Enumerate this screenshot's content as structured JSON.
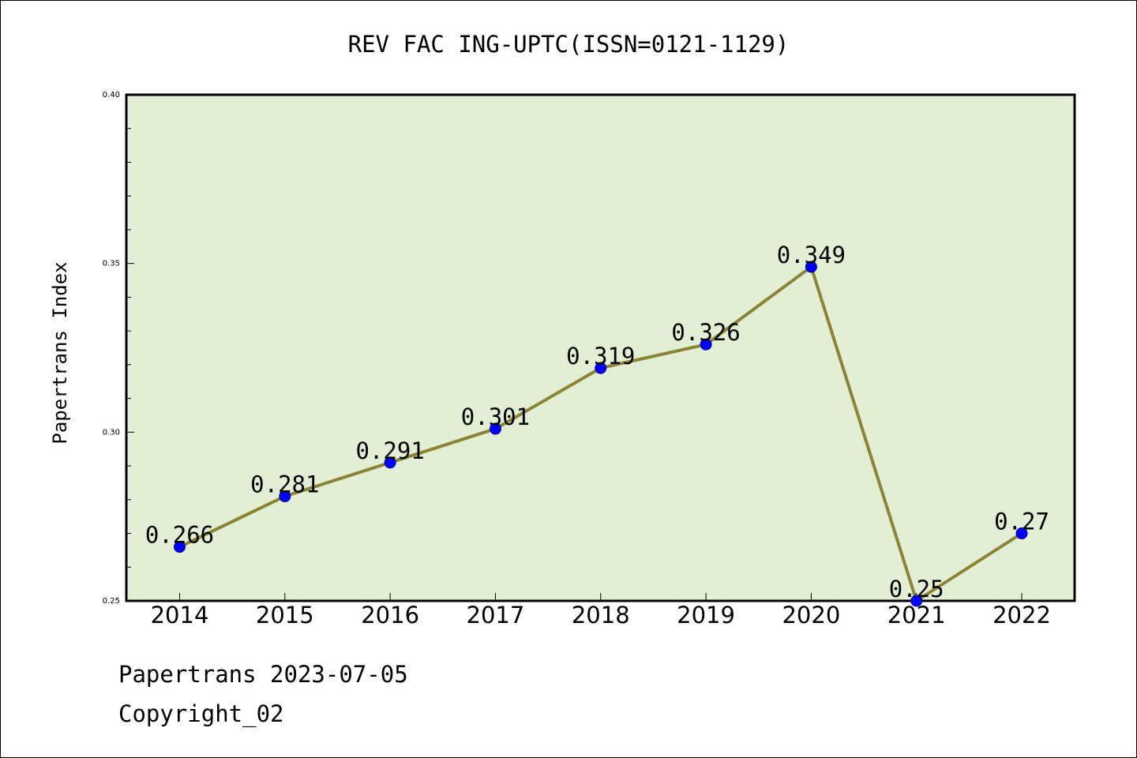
{
  "chart_data": {
    "type": "line",
    "title": "REV FAC ING-UPTC(ISSN=0121-1129)",
    "xlabel": "",
    "ylabel": "Papertrans Index",
    "categories": [
      "2014",
      "2015",
      "2016",
      "2017",
      "2018",
      "2019",
      "2020",
      "2021",
      "2022"
    ],
    "values": [
      0.266,
      0.281,
      0.291,
      0.301,
      0.319,
      0.326,
      0.349,
      0.25,
      0.27
    ],
    "data_labels": [
      "0.266",
      "0.281",
      "0.291",
      "0.301",
      "0.319",
      "0.326",
      "0.349",
      "0.25",
      "0.27"
    ],
    "ylim": [
      0.25,
      0.4
    ],
    "yticks": [
      "0.25",
      "0.30",
      "0.35",
      "0.40"
    ],
    "ytick_values": [
      0.25,
      0.3,
      0.35,
      0.4
    ],
    "grid": false,
    "colors": {
      "line": "#8b8437",
      "marker": "#0000ff",
      "plot_background": "#e2efd5"
    }
  },
  "footer": {
    "date_line": "Papertrans 2023-07-05",
    "copyright": "Copyright_02"
  }
}
